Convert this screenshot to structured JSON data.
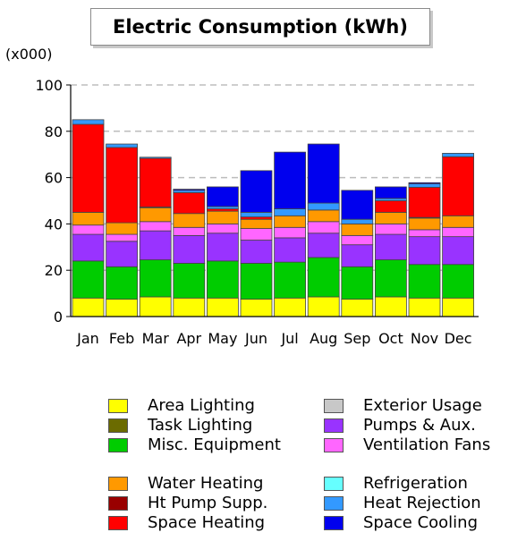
{
  "chart_data": {
    "type": "bar",
    "stacked": true,
    "title": "Electric Consumption (kWh)",
    "multiplier": "(x000)",
    "ylim": [
      0,
      100
    ],
    "yticks": [
      0,
      20,
      40,
      60,
      80,
      100
    ],
    "grid": true,
    "categories": [
      "Jan",
      "Feb",
      "Mar",
      "Apr",
      "May",
      "Jun",
      "Jul",
      "Aug",
      "Sep",
      "Oct",
      "Nov",
      "Dec"
    ],
    "series": [
      {
        "name": "Area Lighting",
        "color": "#ffff00",
        "values": [
          8,
          7.5,
          8.5,
          8,
          8,
          7.5,
          8,
          8.5,
          7.5,
          8.5,
          8,
          8
        ]
      },
      {
        "name": "Task Lighting",
        "color": "#6b6b00",
        "values": [
          0,
          0,
          0,
          0,
          0,
          0,
          0,
          0,
          0,
          0,
          0,
          0
        ]
      },
      {
        "name": "Misc. Equipment",
        "color": "#00cc00",
        "values": [
          16,
          14,
          16,
          15,
          16,
          15.5,
          15.5,
          17,
          14,
          16,
          14.5,
          14.5
        ]
      },
      {
        "name": "Exterior Usage",
        "color": "#c8c8c8",
        "values": [
          0,
          0,
          0,
          0,
          0,
          0,
          0,
          0,
          0,
          0,
          0,
          0
        ]
      },
      {
        "name": "Pumps & Aux.",
        "color": "#9933ff",
        "values": [
          11.5,
          11,
          12.5,
          12,
          12,
          10,
          10.5,
          10.5,
          9.5,
          11,
          12,
          12
        ]
      },
      {
        "name": "Ventilation Fans",
        "color": "#ff66ff",
        "values": [
          4,
          3,
          4,
          3.5,
          4,
          5,
          4.5,
          5,
          4,
          4.5,
          3,
          4
        ]
      },
      {
        "name": "Water Heating",
        "color": "#ff9900",
        "values": [
          5.5,
          5,
          6,
          6,
          5.5,
          4,
          5,
          5,
          5,
          5,
          5,
          5
        ]
      },
      {
        "name": "Ht Pump Supp.",
        "color": "#990000",
        "values": [
          0,
          0,
          0.3,
          0,
          0,
          0,
          0,
          0,
          0,
          0,
          0.3,
          0
        ]
      },
      {
        "name": "Space Heating",
        "color": "#ff0000",
        "values": [
          38,
          32.5,
          21,
          9,
          1,
          1,
          0,
          0,
          0,
          5,
          13,
          25.5
        ]
      },
      {
        "name": "Refrigeration",
        "color": "#66ffff",
        "values": [
          0,
          0,
          0,
          0,
          0,
          0,
          0,
          0,
          0,
          0,
          0,
          0
        ]
      },
      {
        "name": "Heat Rejection",
        "color": "#3399ff",
        "values": [
          2,
          1.5,
          0.5,
          1,
          1,
          2,
          3,
          3,
          2,
          1,
          1.5,
          1.5
        ]
      },
      {
        "name": "Space Cooling",
        "color": "#0000ee",
        "values": [
          0,
          0,
          0,
          0.5,
          8.5,
          18,
          24.5,
          25.5,
          12.5,
          5,
          0.5,
          0
        ]
      }
    ]
  },
  "legend_layout": [
    [
      "Area Lighting",
      "Task Lighting",
      "Misc. Equipment",
      null,
      "Water Heating",
      "Ht Pump Supp.",
      "Space Heating"
    ],
    [
      "Exterior Usage",
      "Pumps & Aux.",
      "Ventilation Fans",
      null,
      "Refrigeration",
      "Heat Rejection",
      "Space Cooling"
    ]
  ]
}
